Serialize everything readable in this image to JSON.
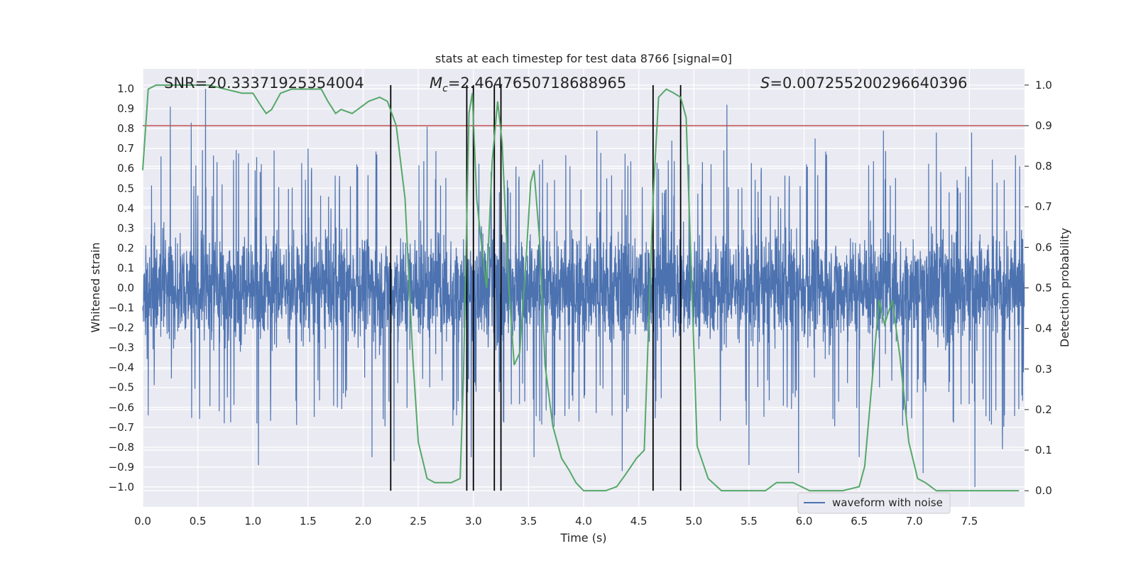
{
  "chart_data": {
    "type": "line",
    "title": "stats at each timestep for test data 8766 [signal=0]",
    "xlabel": "Time (s)",
    "ylabel": "Whitened strain",
    "y2label": "Detection probability",
    "xlim": [
      0,
      8
    ],
    "ylim": [
      -1.1,
      1.1
    ],
    "y2lim": [
      -0.04,
      1.04
    ],
    "xticks": [
      "0.0",
      "0.5",
      "1.0",
      "1.5",
      "2.0",
      "2.5",
      "3.0",
      "3.5",
      "4.0",
      "4.5",
      "5.0",
      "5.5",
      "6.0",
      "6.5",
      "7.0",
      "7.5"
    ],
    "yticks": [
      "1.0",
      "0.9",
      "0.8",
      "0.7",
      "0.6",
      "0.5",
      "0.4",
      "0.3",
      "0.2",
      "0.1",
      "0.0",
      "−0.1",
      "−0.2",
      "−0.3",
      "−0.4",
      "−0.5",
      "−0.6",
      "−0.7",
      "−0.8",
      "−0.9",
      "−1.0"
    ],
    "y2ticks": [
      "1.0",
      "0.9",
      "0.8",
      "0.7",
      "0.6",
      "0.5",
      "0.4",
      "0.3",
      "0.2",
      "0.1",
      "0.0"
    ],
    "annotations": {
      "snr": "SNR=20.33371925354004",
      "mc_symbol": "M",
      "mc_sub": "c",
      "mc_value": "=2.4647650718688965",
      "s_symbol": "S",
      "s_value": "=0.007255200296640396"
    },
    "legend": "waveform with noise",
    "threshold": 0.9,
    "vertical_lines": [
      2.25,
      2.94,
      3.0,
      3.19,
      3.25,
      4.63,
      4.88
    ],
    "waveform": {
      "name": "waveform with noise",
      "color": "#4c72b0",
      "duration": 8,
      "typical_range": [
        -0.42,
        0.42
      ],
      "spikes": [
        [
          0.25,
          0.91
        ],
        [
          0.44,
          0.83
        ],
        [
          0.57,
          1.0
        ],
        [
          0.72,
          0.52
        ],
        [
          1.5,
          0.7
        ],
        [
          2.58,
          0.81
        ],
        [
          2.98,
          0.95
        ],
        [
          3.25,
          0.86
        ],
        [
          3.6,
          0.62
        ],
        [
          4.12,
          0.79
        ],
        [
          4.8,
          0.74
        ],
        [
          5.3,
          0.92
        ],
        [
          6.1,
          0.75
        ],
        [
          6.72,
          0.79
        ],
        [
          7.2,
          0.78
        ],
        [
          7.52,
          0.78
        ],
        [
          0.05,
          -0.64
        ],
        [
          0.74,
          -0.68
        ],
        [
          1.05,
          -0.89
        ],
        [
          2.08,
          -0.85
        ],
        [
          2.28,
          -0.87
        ],
        [
          2.98,
          -0.85
        ],
        [
          3.55,
          -0.85
        ],
        [
          4.35,
          -0.92
        ],
        [
          5.5,
          -0.89
        ],
        [
          5.95,
          -0.93
        ],
        [
          6.5,
          -0.85
        ],
        [
          7.08,
          -0.93
        ],
        [
          7.55,
          -1.0
        ],
        [
          7.8,
          -0.81
        ]
      ]
    },
    "detection_probability": {
      "color": "#55a868",
      "x": [
        0.0,
        0.05,
        0.12,
        0.3,
        0.6,
        0.75,
        0.9,
        1.0,
        1.07,
        1.12,
        1.17,
        1.25,
        1.35,
        1.5,
        1.62,
        1.68,
        1.75,
        1.8,
        1.9,
        1.95,
        2.05,
        2.15,
        2.22,
        2.3,
        2.38,
        2.45,
        2.5,
        2.58,
        2.65,
        2.8,
        2.88,
        2.91,
        2.96,
        2.99,
        3.03,
        3.08,
        3.12,
        3.17,
        3.22,
        3.26,
        3.32,
        3.37,
        3.42,
        3.48,
        3.52,
        3.55,
        3.6,
        3.65,
        3.72,
        3.8,
        3.87,
        3.93,
        4.0,
        4.2,
        4.3,
        4.38,
        4.48,
        4.55,
        4.63,
        4.68,
        4.75,
        4.82,
        4.88,
        4.93,
        5.03,
        5.13,
        5.25,
        5.45,
        5.6,
        5.65,
        5.75,
        5.8,
        5.9,
        6.05,
        6.2,
        6.35,
        6.5,
        6.55,
        6.62,
        6.68,
        6.73,
        6.8,
        6.87,
        6.95,
        7.03,
        7.1,
        7.2,
        7.3,
        7.5,
        7.75,
        7.95
      ],
      "y": [
        0.79,
        0.99,
        1.0,
        1.0,
        1.0,
        0.99,
        0.98,
        0.98,
        0.95,
        0.93,
        0.94,
        0.98,
        0.99,
        0.99,
        0.99,
        0.96,
        0.93,
        0.94,
        0.93,
        0.94,
        0.96,
        0.97,
        0.96,
        0.9,
        0.72,
        0.33,
        0.12,
        0.03,
        0.02,
        0.02,
        0.03,
        0.28,
        0.93,
        0.98,
        0.72,
        0.59,
        0.5,
        0.81,
        0.96,
        0.86,
        0.51,
        0.31,
        0.34,
        0.58,
        0.76,
        0.79,
        0.62,
        0.31,
        0.16,
        0.08,
        0.05,
        0.02,
        0.0,
        0.0,
        0.01,
        0.04,
        0.08,
        0.1,
        0.72,
        0.97,
        0.99,
        0.98,
        0.97,
        0.92,
        0.11,
        0.03,
        0.0,
        0.0,
        0.0,
        0.0,
        0.02,
        0.02,
        0.02,
        0.0,
        0.0,
        0.0,
        0.01,
        0.06,
        0.28,
        0.47,
        0.41,
        0.47,
        0.33,
        0.12,
        0.03,
        0.02,
        0.0,
        0.0,
        0.0,
        0.0,
        0.0
      ]
    }
  }
}
